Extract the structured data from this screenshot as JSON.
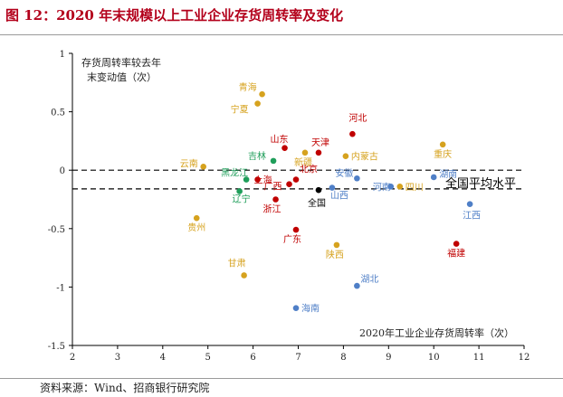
{
  "title": "图 12：2020 年末规模以上工业企业存货周转率及变化",
  "source": "资料来源：Wind、招商银行研究院",
  "colors": {
    "title": "#b3001b",
    "red": "#c00000",
    "gold": "#d6a21e",
    "green": "#1f9e5a",
    "blue": "#4f7fc7",
    "black": "#000000"
  },
  "chart_data": {
    "type": "scatter",
    "xlabel": "2020年工业企业存货周转率（次）",
    "ylabel_line1": "存货周转率较去年",
    "ylabel_line2": "末变动值（次）",
    "xlim": [
      2,
      12
    ],
    "ylim": [
      -1.5,
      1
    ],
    "x_ticks": [
      "2",
      "3",
      "4",
      "5",
      "6",
      "7",
      "8",
      "9",
      "10",
      "11",
      "12"
    ],
    "y_ticks": [
      "-1.5",
      "-1",
      "-0.5",
      "0",
      "0.5",
      "1"
    ],
    "reference_lines": [
      {
        "axis": "y",
        "value": 0,
        "style": "dashed"
      },
      {
        "axis": "y",
        "value": -0.16,
        "style": "dashed"
      }
    ],
    "annotation": "全国平均水平",
    "points": [
      {
        "label": "青海",
        "x": 6.2,
        "y": 0.65,
        "color": "gold"
      },
      {
        "label": "宁夏",
        "x": 6.1,
        "y": 0.57,
        "color": "gold"
      },
      {
        "label": "河北",
        "x": 8.2,
        "y": 0.31,
        "color": "red"
      },
      {
        "label": "重庆",
        "x": 10.2,
        "y": 0.22,
        "color": "gold"
      },
      {
        "label": "山东",
        "x": 6.7,
        "y": 0.19,
        "color": "red"
      },
      {
        "label": "天津",
        "x": 7.45,
        "y": 0.15,
        "color": "red"
      },
      {
        "label": "新疆",
        "x": 7.15,
        "y": 0.15,
        "color": "gold"
      },
      {
        "label": "内蒙古",
        "x": 8.05,
        "y": 0.12,
        "color": "gold"
      },
      {
        "label": "吉林",
        "x": 6.45,
        "y": 0.08,
        "color": "green"
      },
      {
        "label": "云南",
        "x": 4.9,
        "y": 0.03,
        "color": "gold"
      },
      {
        "label": "湖南",
        "x": 10.0,
        "y": -0.06,
        "color": "blue"
      },
      {
        "label": "黑龙江",
        "x": 5.85,
        "y": -0.08,
        "color": "green"
      },
      {
        "label": "上海",
        "x": 6.1,
        "y": -0.08,
        "color": "red"
      },
      {
        "label": "北京",
        "x": 6.95,
        "y": -0.08,
        "color": "red"
      },
      {
        "label": "安徽",
        "x": 8.3,
        "y": -0.07,
        "color": "blue"
      },
      {
        "label": "广西",
        "x": 6.8,
        "y": -0.12,
        "color": "red"
      },
      {
        "label": "河南",
        "x": 9.05,
        "y": -0.14,
        "color": "blue"
      },
      {
        "label": "四川",
        "x": 9.25,
        "y": -0.14,
        "color": "gold"
      },
      {
        "label": "山西",
        "x": 7.75,
        "y": -0.15,
        "color": "blue"
      },
      {
        "label": "全国",
        "x": 7.45,
        "y": -0.17,
        "color": "black"
      },
      {
        "label": "辽宁",
        "x": 5.7,
        "y": -0.18,
        "color": "green"
      },
      {
        "label": "浙江",
        "x": 6.5,
        "y": -0.25,
        "color": "red"
      },
      {
        "label": "江西",
        "x": 10.8,
        "y": -0.29,
        "color": "blue"
      },
      {
        "label": "贵州",
        "x": 4.75,
        "y": -0.41,
        "color": "gold"
      },
      {
        "label": "广东",
        "x": 6.95,
        "y": -0.51,
        "color": "red"
      },
      {
        "label": "福建",
        "x": 10.5,
        "y": -0.63,
        "color": "red"
      },
      {
        "label": "陕西",
        "x": 7.85,
        "y": -0.64,
        "color": "gold"
      },
      {
        "label": "甘肃",
        "x": 5.8,
        "y": -0.9,
        "color": "gold"
      },
      {
        "label": "湖北",
        "x": 8.3,
        "y": -0.99,
        "color": "blue"
      },
      {
        "label": "海南",
        "x": 6.95,
        "y": -1.18,
        "color": "blue"
      }
    ]
  }
}
